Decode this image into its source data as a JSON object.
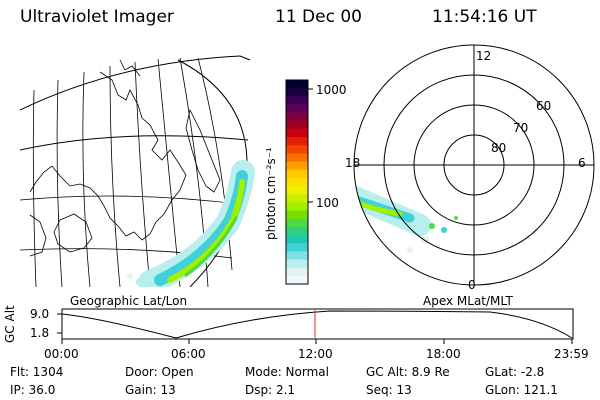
{
  "header": {
    "title": "Ultraviolet Imager",
    "date": "11 Dec 00",
    "time": "11:54:16 UT"
  },
  "left_panel": {
    "caption": "Geographic Lat/Lon"
  },
  "right_panel": {
    "caption": "Apex MLat/MLT",
    "mlt_labels": {
      "top": "12",
      "right": "6",
      "left": "18",
      "bottom": "0"
    },
    "lat_labels": [
      "60",
      "70",
      "80"
    ]
  },
  "colorbar": {
    "unit_label": "photon cm⁻²s⁻¹",
    "tick_labels": [
      "1000",
      "100"
    ],
    "colors": [
      "#000033",
      "#1a0040",
      "#3a0058",
      "#5e0058",
      "#800040",
      "#a00020",
      "#c80010",
      "#e02000",
      "#f04800",
      "#f87000",
      "#ffa000",
      "#ffc800",
      "#ffe000",
      "#f0f000",
      "#c8f000",
      "#a0f000",
      "#78e000",
      "#50d840",
      "#30d080",
      "#20c8b0",
      "#40d0d8",
      "#80e0e8",
      "#b8eeee",
      "#e0f4f4",
      "#f2f8f8"
    ]
  },
  "alt_plot": {
    "ylabel": "GC Alt",
    "y_ticks": [
      "9.0",
      "1.8"
    ],
    "x_ticks": [
      "00:00",
      "06:00",
      "12:00",
      "18:00",
      "23:59"
    ],
    "current_time_fraction": 0.496
  },
  "info": {
    "flt": "Flt: 1304",
    "door": "Door: Open",
    "mode": "Mode: Normal",
    "gc_alt": "GC Alt:  8.9 Re",
    "glat": "GLat:   -2.8",
    "ip": "IP: 36.0",
    "gain": "Gain: 13",
    "dsp": "Dsp:     2.1",
    "seq": "Seq: 13",
    "glon": "GLon: 121.1"
  },
  "style": {
    "accent": "#d03020",
    "line": "#000000"
  }
}
